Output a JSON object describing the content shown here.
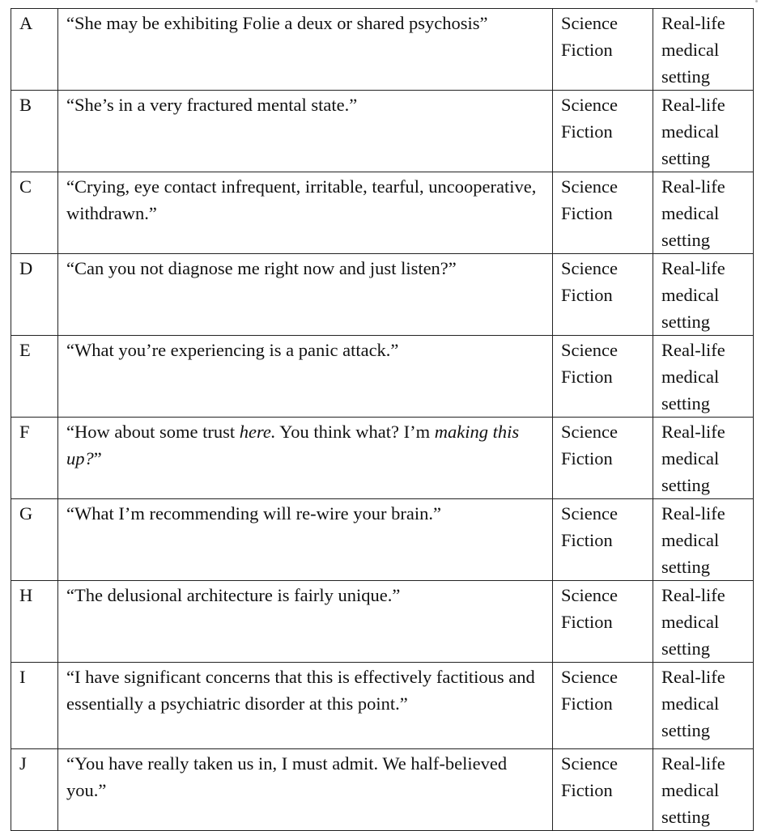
{
  "rows": [
    {
      "letter": "A",
      "quote": [
        {
          "t": "“She may be exhibiting Folie a deux or shared psychosis”"
        }
      ],
      "col3": "Science Fiction",
      "col4": "Real-life medical setting"
    },
    {
      "letter": "B",
      "quote": [
        {
          "t": "“She’s in a very fractured mental state.”"
        }
      ],
      "col3": "Science Fiction",
      "col4": "Real-life medical setting"
    },
    {
      "letter": "C",
      "quote": [
        {
          "t": "“Crying, eye contact infrequent, irritable, tearful, uncooperative, withdrawn.”"
        }
      ],
      "col3": "Science Fiction",
      "col4": "Real-life medical setting"
    },
    {
      "letter": "D",
      "quote": [
        {
          "t": "“Can you not diagnose me right now and just listen?”"
        }
      ],
      "col3": "Science Fiction",
      "col4": "Real-life medical setting"
    },
    {
      "letter": "E",
      "quote": [
        {
          "t": "“What you’re experiencing is a panic attack.”"
        }
      ],
      "col3": "Science Fiction",
      "col4": "Real-life medical setting"
    },
    {
      "letter": "F",
      "quote": [
        {
          "t": "“How about some trust "
        },
        {
          "t": "here.",
          "i": true
        },
        {
          "t": " You think what? I’m "
        },
        {
          "t": "making this up?",
          "i": true
        },
        {
          "t": "”"
        }
      ],
      "col3": "Science Fiction",
      "col4": "Real-life medical setting"
    },
    {
      "letter": "G",
      "quote": [
        {
          "t": "“What I’m recommending will re-wire your brain.”"
        }
      ],
      "col3": "Science Fiction",
      "col4": "Real-life medical setting"
    },
    {
      "letter": "H",
      "quote": [
        {
          "t": "“The delusional architecture is fairly unique.”"
        }
      ],
      "col3": "Science Fiction",
      "col4": "Real-life medical setting"
    },
    {
      "letter": "I",
      "quote": [
        {
          "t": "“I have significant concerns that this is effectively factitious and essentially a psychiatric disorder at this point.”"
        }
      ],
      "col3": "Science Fiction",
      "col4": "Real-life medical setting"
    },
    {
      "letter": "J",
      "quote": [
        {
          "t": "“You have really taken us in, I must admit. We half-believed you.”"
        }
      ],
      "col3": "Science Fiction",
      "col4": "Real-life medical setting"
    }
  ]
}
